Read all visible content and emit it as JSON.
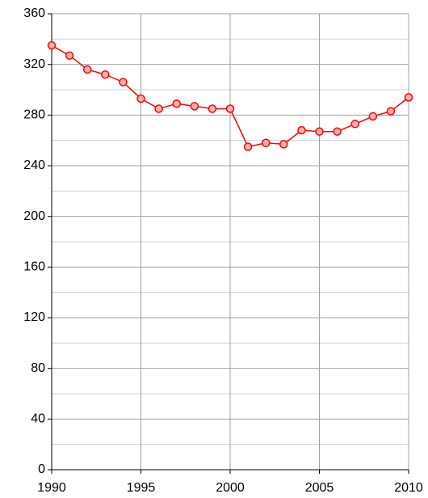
{
  "chart_data": {
    "type": "line",
    "x": [
      1990,
      1991,
      1992,
      1993,
      1994,
      1995,
      1996,
      1997,
      1998,
      1999,
      2000,
      2001,
      2002,
      2003,
      2004,
      2005,
      2006,
      2007,
      2008,
      2009,
      2010
    ],
    "series": [
      {
        "color": "#ff0000",
        "marker_fill": "#ffb0b0",
        "values": [
          335,
          327,
          316,
          312,
          306,
          293,
          285,
          289,
          287,
          285,
          285,
          255,
          258,
          257,
          268,
          267,
          267,
          273,
          279,
          283,
          294
        ]
      }
    ],
    "xlim": [
      1990,
      2010
    ],
    "xticks": [
      1990,
      1995,
      2000,
      2005,
      2010
    ],
    "ylim": [
      0,
      360
    ],
    "yticks": [
      0,
      40,
      80,
      120,
      160,
      200,
      240,
      280,
      320,
      360
    ],
    "minor_yticks": [
      20,
      60,
      100,
      140,
      180,
      220,
      260,
      300,
      340
    ],
    "grid": true
  }
}
